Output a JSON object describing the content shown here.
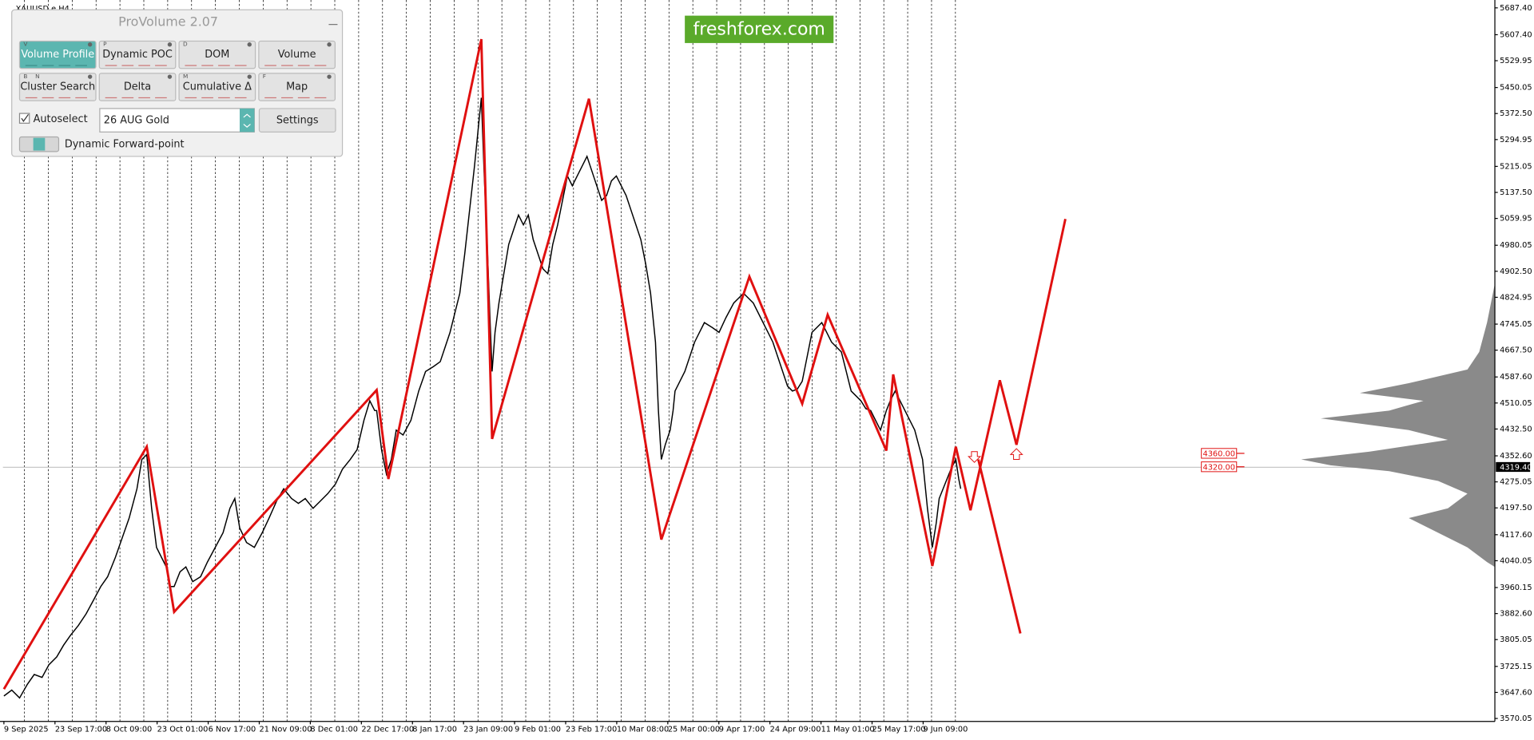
{
  "window": {
    "symbol": "XAUUSD,e,H4"
  },
  "panel": {
    "title": "ProVolume 2.07",
    "buttons": [
      {
        "keys": [
          "V"
        ],
        "label": "Volume Profile"
      },
      {
        "keys": [
          "P"
        ],
        "label": "Dynamic POC"
      },
      {
        "keys": [
          "D"
        ],
        "label": "DOM"
      },
      {
        "keys": [],
        "label": "Volume"
      },
      {
        "keys": [
          "B",
          "N"
        ],
        "label": "Cluster Search"
      },
      {
        "keys": [],
        "label": "Delta"
      },
      {
        "keys": [
          "M"
        ],
        "label": "Cumulative Δ"
      },
      {
        "keys": [
          "F"
        ],
        "label": "Map"
      }
    ],
    "autoselect": "Autoselect",
    "instrument": "26 AUG Gold",
    "settings": "Settings",
    "forward": "Dynamic Forward-point"
  },
  "watermark": "freshforex.com",
  "chart_data": {
    "type": "line",
    "ylim": [
      3561.3,
      5702.0
    ],
    "yticks": [
      {
        "value": 5687.4,
        "label": "5687.40"
      },
      {
        "value": 5607.4,
        "label": "5607.40"
      },
      5529.95,
      5450.05,
      {
        "value": 5372.5,
        "label": "5372.50"
      },
      5294.95,
      5215.05,
      {
        "value": 5137.5,
        "label": "5137.50"
      },
      5059.95,
      4980.05,
      {
        "value": 4902.5,
        "label": "4902.50"
      },
      4824.95,
      4745.05,
      {
        "value": 4667.5,
        "label": "4667.50"
      },
      {
        "value": 4587.6,
        "label": "4587.60"
      },
      4510.05,
      {
        "value": 4432.5,
        "label": "4432.50"
      },
      {
        "value": 4352.6,
        "label": "4352.60"
      },
      4275.05,
      {
        "value": 4197.5,
        "label": "4197.50"
      },
      {
        "value": 4117.6,
        "label": "4117.60"
      },
      4040.05,
      3960.15,
      {
        "value": 3882.6,
        "label": "3882.60"
      },
      3805.05,
      3725.15,
      {
        "value": 3647.6,
        "label": "3647.60"
      },
      3570.05
    ],
    "categories": [
      "9 Sep 2025",
      "23 Sep 17:00",
      "8 Oct 09:00",
      "23 Oct 01:00",
      "6 Nov 17:00",
      "21 Nov 09:00",
      "8 Dec 01:00",
      "22 Dec 17:00",
      "8 Jan 17:00",
      "23 Jan 09:00",
      "9 Feb 01:00",
      "23 Feb 17:00",
      "10 Mar 08:00",
      "25 Mar 00:00",
      "9 Apr 17:00",
      "24 Apr 09:00",
      "11 May 01:00",
      "25 May 17:00",
      "9 Jun 09:00"
    ],
    "price_levels": [
      {
        "value": 4360,
        "label": "4360.00"
      },
      {
        "value": 4320,
        "label": "4320.00"
      }
    ],
    "current_price": {
      "value": 4319.4,
      "label": "4319.40"
    }
  }
}
